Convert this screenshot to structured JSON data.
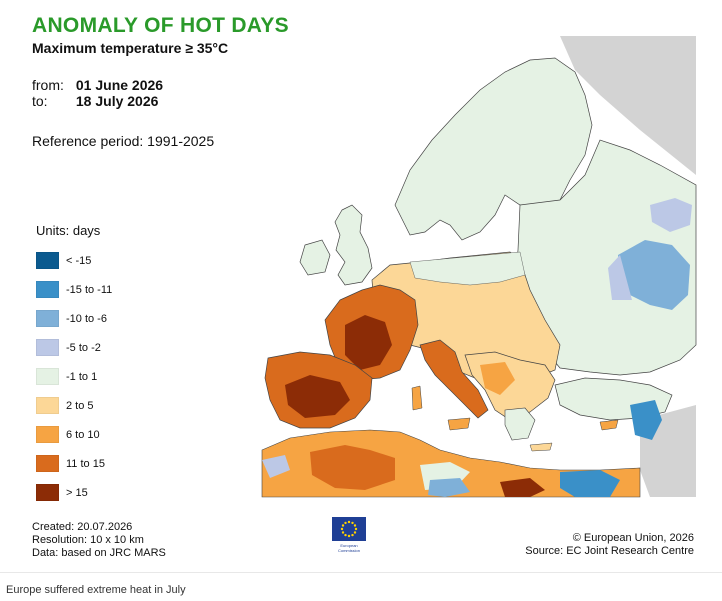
{
  "map": {
    "title": "ANOMALY OF HOT DAYS",
    "subtitle": "Maximum temperature ≥ 35°C",
    "period": {
      "from_label": "from:",
      "from_value": "01 June 2026",
      "to_label": "to:",
      "to_value": "18 July 2026"
    },
    "reference": "Reference period: 1991-2025",
    "legend": {
      "title": "Units: days",
      "items": [
        {
          "label": "< -15",
          "color": "#0b5a8f"
        },
        {
          "label": "-15 to -11",
          "color": "#3a90c8"
        },
        {
          "label": "-10 to -6",
          "color": "#7fb0d8"
        },
        {
          "label": "-5 to -2",
          "color": "#bcc8e6"
        },
        {
          "label": "-1 to 1",
          "color": "#e5f2e4"
        },
        {
          "label": "2 to 5",
          "color": "#fcd797"
        },
        {
          "label": "6 to 10",
          "color": "#f6a443"
        },
        {
          "label": "11 to 15",
          "color": "#d96b1d"
        },
        {
          "label": "> 15",
          "color": "#8c2c06"
        }
      ]
    },
    "colors": {
      "land_neutral": "#e5f2e4",
      "outside_domain": "#d3d3d3",
      "sea": "#ffffff",
      "border": "#444444"
    },
    "footer_left": {
      "created": "Created: 20.07.2026",
      "resolution": "Resolution: 10 x 10 km",
      "data": "Data: based on JRC MARS"
    },
    "footer_right": {
      "copyright": "© European Union, 2026",
      "source": "Source: EC Joint Research Centre"
    },
    "logo": {
      "name_line1": "European",
      "name_line2": "Commission"
    }
  },
  "caption": "Europe suffered extreme heat in July"
}
